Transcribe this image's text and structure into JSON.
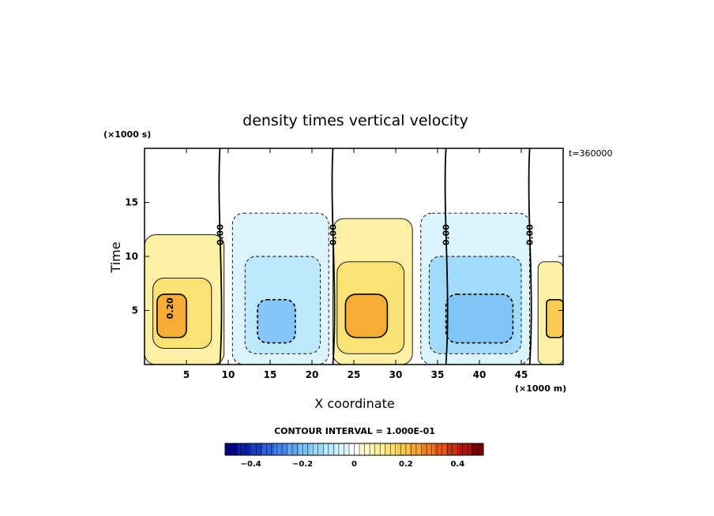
{
  "chart_data": {
    "type": "heatmap",
    "title": "density times vertical velocity",
    "xlabel": "X coordinate",
    "ylabel": "Time",
    "x_unit": "(×1000 m)",
    "y_unit": "(×1000 s)",
    "time_stamp": "t=360000",
    "xlim": [
      0,
      50
    ],
    "ylim": [
      0,
      20
    ],
    "x_ticks": [
      5,
      10,
      15,
      20,
      25,
      30,
      35,
      40,
      45
    ],
    "y_ticks": [
      5,
      10,
      15
    ],
    "contour_interval_text": "CONTOUR INTERVAL = 1.000E-01",
    "contour_interval": 0.1,
    "zero_contour_labels": [
      "0.00",
      "0.00",
      "0.00",
      "0.00"
    ],
    "zero_contours_x_at_top": [
      9,
      22.5,
      36,
      46
    ],
    "extreme_label": "0.20",
    "colorbar": {
      "range": [
        -0.5,
        0.5
      ],
      "ticks": [
        -0.4,
        -0.2,
        0,
        0.2,
        0.4
      ],
      "tick_labels": [
        "−0.4",
        "−0.2",
        "0",
        "0.2",
        "0.4"
      ],
      "colors_low_to_high": [
        "#00008c",
        "#0b1ea8",
        "#1a3ec4",
        "#2c60da",
        "#4485ea",
        "#5fa6f2",
        "#7cc2f6",
        "#9ad8f8",
        "#b8e8fa",
        "#d8f4fc",
        "#ffffff",
        "#fdf8c8",
        "#fcef9a",
        "#fbe070",
        "#f9c84a",
        "#f6a630",
        "#f07e22",
        "#e35618",
        "#cf3012",
        "#b0140c",
        "#7a0000"
      ]
    },
    "cells": [
      {
        "x": [
          0,
          9.5
        ],
        "y": [
          0,
          12
        ],
        "value": 0.08
      },
      {
        "x": [
          1,
          8
        ],
        "y": [
          1.5,
          8
        ],
        "value": 0.15
      },
      {
        "x": [
          1.5,
          5
        ],
        "y": [
          2.5,
          6.5
        ],
        "value": 0.25
      },
      {
        "x": [
          10.5,
          22
        ],
        "y": [
          0,
          14
        ],
        "value": -0.05
      },
      {
        "x": [
          12,
          21
        ],
        "y": [
          1,
          10
        ],
        "value": -0.12
      },
      {
        "x": [
          13.5,
          18
        ],
        "y": [
          2,
          6
        ],
        "value": -0.2
      },
      {
        "x": [
          22.5,
          32
        ],
        "y": [
          0,
          13.5
        ],
        "value": 0.08
      },
      {
        "x": [
          23,
          31
        ],
        "y": [
          1,
          9.5
        ],
        "value": 0.16
      },
      {
        "x": [
          24,
          29
        ],
        "y": [
          2.5,
          6.5
        ],
        "value": 0.26
      },
      {
        "x": [
          33,
          46
        ],
        "y": [
          0,
          14
        ],
        "value": -0.06
      },
      {
        "x": [
          34,
          45
        ],
        "y": [
          1,
          10
        ],
        "value": -0.13
      },
      {
        "x": [
          36,
          44
        ],
        "y": [
          2,
          6.5
        ],
        "value": -0.21
      },
      {
        "x": [
          47,
          50
        ],
        "y": [
          0,
          9.5
        ],
        "value": 0.12
      },
      {
        "x": [
          48,
          50
        ],
        "y": [
          2.5,
          6
        ],
        "value": 0.2
      }
    ]
  }
}
